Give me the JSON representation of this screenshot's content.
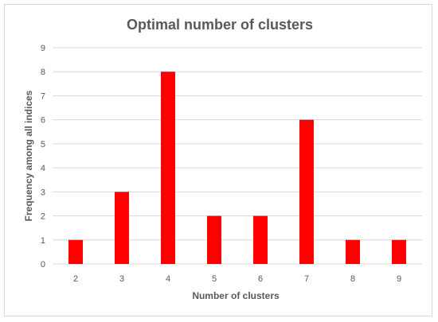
{
  "chart_data": {
    "type": "bar",
    "title": "Optimal number of clusters",
    "xlabel": "Number of clusters",
    "ylabel": "Frequency among all indices",
    "categories": [
      "2",
      "3",
      "4",
      "5",
      "6",
      "7",
      "8",
      "9"
    ],
    "values": [
      1,
      3,
      8,
      2,
      2,
      6,
      1,
      1
    ],
    "ylim": [
      0,
      9
    ],
    "yticks": [
      "0",
      "1",
      "2",
      "3",
      "4",
      "5",
      "6",
      "7",
      "8",
      "9"
    ],
    "grid": true,
    "legend": "none",
    "bar_color": "#ff0000",
    "grid_color": "#d9d9d9"
  }
}
